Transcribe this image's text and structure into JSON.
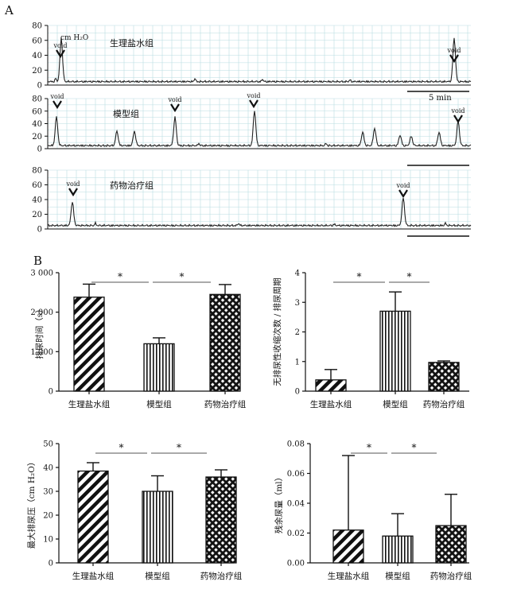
{
  "panel_labels": {
    "a": "A",
    "b": "B"
  },
  "traces": {
    "y_ticks": [
      "80",
      "60",
      "40",
      "20",
      "0"
    ],
    "unit_label": "cm H₂O",
    "void_label": "void",
    "scale_bar_label": "5 min",
    "groups": [
      {
        "name": "生理盐水组",
        "void_count": 2
      },
      {
        "name": "模型组",
        "void_count": 4
      },
      {
        "name": "药物治疗组",
        "void_count": 2
      }
    ]
  },
  "colors": {
    "grid": "#b9dde2",
    "line": "#222222"
  },
  "chart_data": [
    {
      "type": "bar",
      "categories": [
        "生理盐水组",
        "模型组",
        "药物治疗组"
      ],
      "values": [
        2380,
        1200,
        2450
      ],
      "errors": [
        330,
        150,
        250
      ],
      "ylabel": "排尿时间（s）",
      "ylim": [
        0,
        3000
      ],
      "yticks": [
        "0",
        "1 000",
        "2 000",
        "3 000"
      ],
      "significance": [
        "*",
        "*"
      ]
    },
    {
      "type": "bar",
      "categories": [
        "生理盐水组",
        "模型组",
        "药物治疗组"
      ],
      "values": [
        0.38,
        2.7,
        0.97
      ],
      "errors": [
        0.35,
        0.65,
        0.05
      ],
      "ylabel": "无排尿性收缩次数 / 排尿周期",
      "ylim": [
        0,
        4
      ],
      "yticks": [
        "0",
        "1",
        "2",
        "3",
        "4"
      ],
      "significance": [
        "*",
        "*"
      ]
    },
    {
      "type": "bar",
      "categories": [
        "生理盐水组",
        "模型组",
        "药物治疗组"
      ],
      "values": [
        38.5,
        30,
        36
      ],
      "errors": [
        3.5,
        6.5,
        3
      ],
      "ylabel": "最大排尿压（cm H₂O）",
      "ylim": [
        0,
        50
      ],
      "yticks": [
        "0",
        "10",
        "20",
        "30",
        "40",
        "50"
      ],
      "significance": [
        "*",
        "*"
      ]
    },
    {
      "type": "bar",
      "categories": [
        "生理盐水组",
        "模型组",
        "药物治疗组"
      ],
      "values": [
        0.022,
        0.018,
        0.025
      ],
      "errors": [
        0.05,
        0.015,
        0.021
      ],
      "ylabel": "残余尿量（ml）",
      "ylim": [
        0,
        0.08
      ],
      "yticks": [
        "0.00",
        "0.02",
        "0.04",
        "0.06",
        "0.08"
      ],
      "significance": [
        "*",
        "*"
      ]
    }
  ]
}
